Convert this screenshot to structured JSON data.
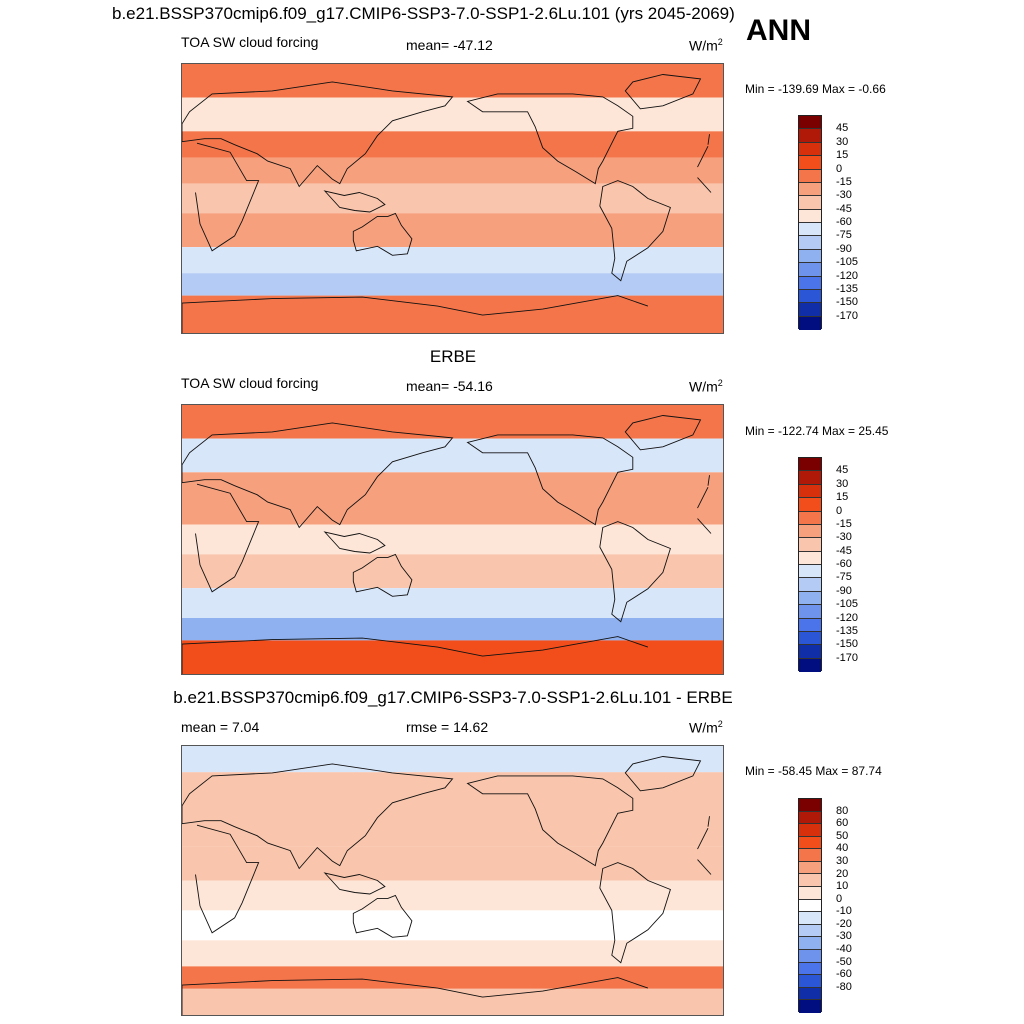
{
  "figure_title": "b.e21.BSSP370cmip6.f09_g17.CMIP6-SSP3-7.0-SSP1-2.6Lu.101 (yrs 2045-2069)",
  "season": "ANN",
  "colors": {
    "abs_scale": [
      "#7a0000",
      "#b01808",
      "#d6300c",
      "#f24e1c",
      "#f4754a",
      "#f7a07e",
      "#f9c5ac",
      "#fde6d8",
      "#d8e6fa",
      "#b4ccf5",
      "#8fb1ef",
      "#6d93ec",
      "#4b73ea",
      "#2b56d6",
      "#0f2ea8",
      "#000e80"
    ],
    "diff_scale": [
      "#7a0000",
      "#b01808",
      "#d6300c",
      "#f24e1c",
      "#f4754a",
      "#f7a07e",
      "#f9c5ac",
      "#fde6d8",
      "#ffffff",
      "#d8e6fa",
      "#b4ccf5",
      "#8fb1ef",
      "#6d93ec",
      "#4b73ea",
      "#2b56d6",
      "#0f2ea8",
      "#000e80"
    ],
    "coast": "#111111"
  },
  "chart_data": [
    {
      "type": "heatmap",
      "title": "",
      "variable": "TOA SW cloud forcing",
      "mean_text": "mean= -47.12",
      "units": "W/m",
      "units_exp": "2",
      "minmax_text": "Min = -139.69 Max =  -0.66",
      "levels": [
        "45",
        "30",
        "15",
        "0",
        "-15",
        "-30",
        "-45",
        "-60",
        "-75",
        "-90",
        "-105",
        "-120",
        "-135",
        "-150",
        "-170"
      ],
      "zones": [
        {
          "lat": 80,
          "value": -5
        },
        {
          "lat": 55,
          "value": -60
        },
        {
          "lat": 35,
          "value": -15
        },
        {
          "lat": 20,
          "value": -30
        },
        {
          "lat": 0,
          "value": -45
        },
        {
          "lat": -20,
          "value": -30
        },
        {
          "lat": -45,
          "value": -70
        },
        {
          "lat": -55,
          "value": -85
        },
        {
          "lat": -75,
          "value": -5
        }
      ]
    },
    {
      "type": "heatmap",
      "title": "ERBE",
      "variable": "TOA SW cloud forcing",
      "mean_text": "mean= -54.16",
      "units": "W/m",
      "units_exp": "2",
      "minmax_text": "Min = -122.74 Max =  25.45",
      "levels": [
        "45",
        "30",
        "15",
        "0",
        "-15",
        "-30",
        "-45",
        "-60",
        "-75",
        "-90",
        "-105",
        "-120",
        "-135",
        "-150",
        "-170"
      ],
      "zones": [
        {
          "lat": 80,
          "value": -10
        },
        {
          "lat": 55,
          "value": -70
        },
        {
          "lat": 35,
          "value": -25
        },
        {
          "lat": 20,
          "value": -30
        },
        {
          "lat": 0,
          "value": -60
        },
        {
          "lat": -20,
          "value": -40
        },
        {
          "lat": -45,
          "value": -75
        },
        {
          "lat": -60,
          "value": -95
        },
        {
          "lat": -75,
          "value": 10
        }
      ]
    },
    {
      "type": "heatmap",
      "title": "b.e21.BSSP370cmip6.f09_g17.CMIP6-SSP3-7.0-SSP1-2.6Lu.101 - ERBE",
      "mean_text": "mean =   7.04",
      "rmse_text": "rmse =  14.62",
      "units": "W/m",
      "units_exp": "2",
      "minmax_text": "Min = -58.45 Max =  87.74",
      "levels": [
        "80",
        "60",
        "50",
        "40",
        "30",
        "20",
        "10",
        "0",
        "-10",
        "-20",
        "-30",
        "-40",
        "-50",
        "-60",
        "-80"
      ],
      "zones": [
        {
          "lat": 85,
          "value": -20
        },
        {
          "lat": 60,
          "value": 15
        },
        {
          "lat": 35,
          "value": 10
        },
        {
          "lat": 10,
          "value": 15
        },
        {
          "lat": -10,
          "value": 5
        },
        {
          "lat": -30,
          "value": -5
        },
        {
          "lat": -50,
          "value": 0
        },
        {
          "lat": -65,
          "value": 35
        },
        {
          "lat": -80,
          "value": 10
        }
      ]
    }
  ]
}
